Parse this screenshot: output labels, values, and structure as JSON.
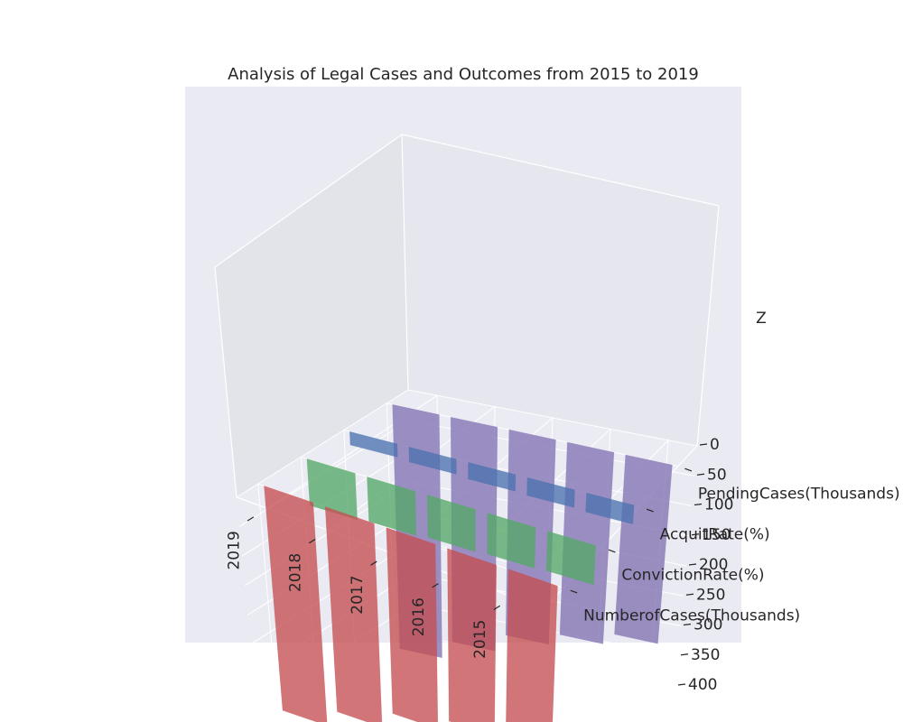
{
  "chart_data": {
    "type": "bar",
    "title": "Analysis of Legal Cases and Outcomes from 2015 to 2019",
    "x_categories": [
      "2019",
      "2018",
      "2017",
      "2016",
      "2015"
    ],
    "y_categories": [
      "NumberofCases(Thousands)",
      "ConvictionRate(%)",
      "AcquitRate(%)",
      "PendingCases(Thousands)"
    ],
    "zlabel": "Z",
    "z_ticks": [
      "0",
      "50",
      "100",
      "150",
      "200",
      "250",
      "300",
      "350",
      "400"
    ],
    "zlim": [
      0,
      400
    ],
    "series": [
      {
        "name": "NumberofCases(Thousands)",
        "color": "#c44e52",
        "values": [
          380,
          350,
          320,
          300,
          280
        ]
      },
      {
        "name": "ConvictionRate(%)",
        "color": "#55a868",
        "values": [
          78,
          75,
          72,
          70,
          68
        ]
      },
      {
        "name": "AcquitRate(%)",
        "color": "#4c72b0",
        "values": [
          22,
          25,
          28,
          30,
          32
        ]
      },
      {
        "name": "PendingCases(Thousands)",
        "color": "#8172b2",
        "values": [
          400,
          370,
          340,
          320,
          300
        ]
      }
    ]
  }
}
